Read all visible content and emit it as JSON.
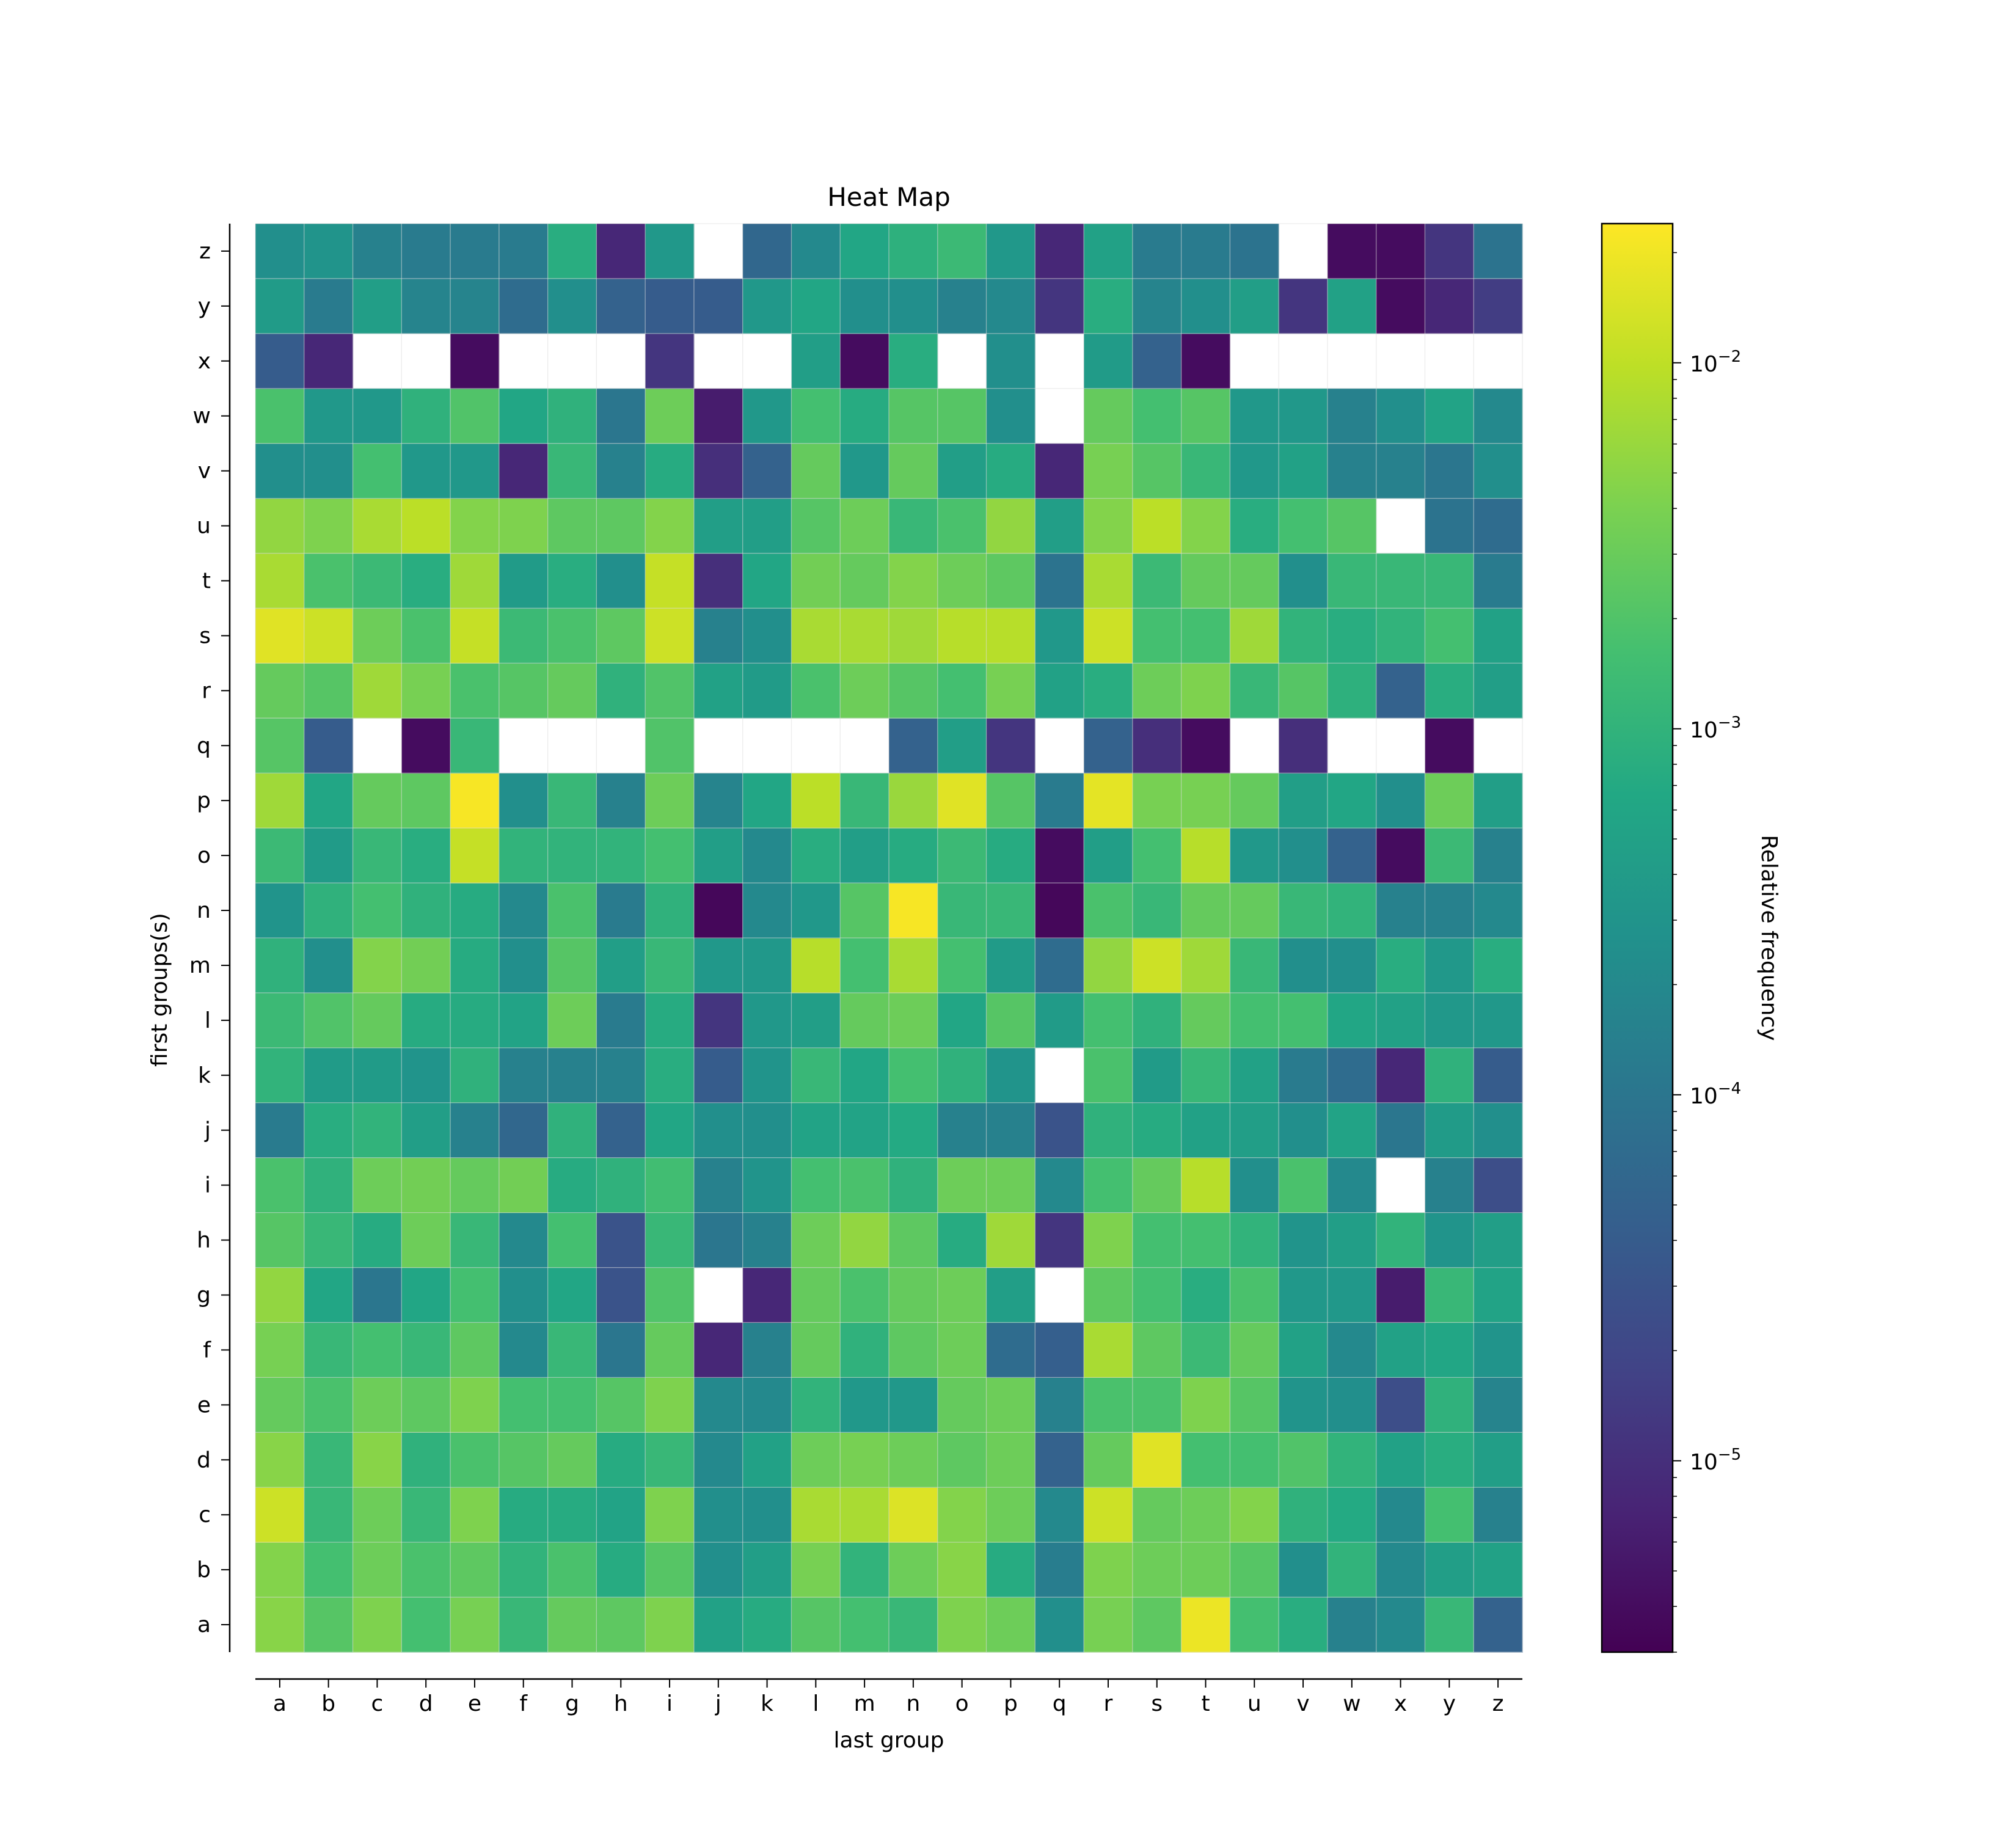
{
  "chart_data": {
    "type": "heatmap",
    "title": "Heat Map",
    "xlabel": "last group",
    "ylabel": "first groups(s)",
    "colorbar_label": "Relative frequency",
    "scale": "log",
    "colormap": "viridis",
    "vmin": 3e-06,
    "vmax": 0.024,
    "colorbar_ticks": [
      {
        "value": 0.01,
        "base": "10",
        "exp": "−2"
      },
      {
        "value": 0.001,
        "base": "10",
        "exp": "−3"
      },
      {
        "value": 0.0001,
        "base": "10",
        "exp": "−4"
      },
      {
        "value": 1e-05,
        "base": "10",
        "exp": "−5"
      }
    ],
    "grid": true,
    "x": [
      "a",
      "b",
      "c",
      "d",
      "e",
      "f",
      "g",
      "h",
      "i",
      "j",
      "k",
      "l",
      "m",
      "n",
      "o",
      "p",
      "q",
      "r",
      "s",
      "t",
      "u",
      "v",
      "w",
      "x",
      "y",
      "z"
    ],
    "y": [
      "a",
      "b",
      "c",
      "d",
      "e",
      "f",
      "g",
      "h",
      "i",
      "j",
      "k",
      "l",
      "m",
      "n",
      "o",
      "p",
      "q",
      "r",
      "s",
      "t",
      "u",
      "v",
      "w",
      "x",
      "y",
      "z"
    ],
    "z": [
      [
        0.0048,
        0.0022,
        0.0042,
        0.0016,
        0.0038,
        0.0012,
        0.0028,
        0.0025,
        0.0042,
        0.0005,
        0.00075,
        0.0022,
        0.0016,
        0.0012,
        0.0042,
        0.0032,
        0.00025,
        0.0038,
        0.0025,
        0.019,
        0.0016,
        0.0008,
        0.00015,
        0.0002,
        0.0012,
        5e-05
      ],
      [
        0.0045,
        0.0016,
        0.0032,
        0.0018,
        0.0025,
        0.001,
        0.0018,
        0.00075,
        0.0022,
        0.00025,
        0.00045,
        0.0038,
        0.001,
        0.0032,
        0.0048,
        0.00075,
        0.00013,
        0.0042,
        0.0032,
        0.0032,
        0.0022,
        0.00025,
        0.001,
        0.0002,
        0.00045,
        0.0005
      ],
      [
        0.012,
        0.0012,
        0.0032,
        0.0012,
        0.0042,
        0.00075,
        0.00075,
        0.00055,
        0.0042,
        0.00025,
        0.00025,
        0.0075,
        0.0075,
        0.015,
        0.0045,
        0.0032,
        0.0002,
        0.012,
        0.0028,
        0.0032,
        0.0045,
        0.00095,
        0.0007,
        0.0002,
        0.0016,
        0.00015
      ],
      [
        0.0048,
        0.0012,
        0.0048,
        0.00095,
        0.0018,
        0.0022,
        0.0028,
        0.00075,
        0.0012,
        0.0002,
        0.0005,
        0.0032,
        0.0038,
        0.0032,
        0.0025,
        0.0032,
        5e-05,
        0.0028,
        0.016,
        0.0016,
        0.0016,
        0.002,
        0.001,
        0.0005,
        0.0008,
        0.00045
      ],
      [
        0.0028,
        0.0018,
        0.0032,
        0.0025,
        0.0042,
        0.0016,
        0.0016,
        0.0022,
        0.0042,
        0.0002,
        0.0002,
        0.001,
        0.00035,
        0.00035,
        0.0028,
        0.0032,
        0.00015,
        0.0018,
        0.0018,
        0.0042,
        0.0022,
        0.0003,
        0.00025,
        2.5e-05,
        0.00095,
        0.00017
      ],
      [
        0.0038,
        0.0012,
        0.0016,
        0.0012,
        0.0025,
        0.0002,
        0.0012,
        0.0001,
        0.0028,
        8e-06,
        0.00015,
        0.0028,
        0.00095,
        0.0025,
        0.0032,
        7e-05,
        4.5e-05,
        0.0075,
        0.0025,
        0.0013,
        0.0028,
        0.0005,
        0.0002,
        0.0005,
        0.0006,
        0.0003
      ],
      [
        0.0055,
        0.0006,
        0.0001,
        0.0006,
        0.0016,
        0.00025,
        0.0006,
        3e-05,
        0.002,
        null,
        8e-06,
        0.0028,
        0.0018,
        0.0028,
        0.0032,
        0.00045,
        null,
        0.0025,
        0.0016,
        0.0008,
        0.0018,
        0.00035,
        0.00035,
        6e-06,
        0.0012,
        0.00055
      ],
      [
        0.0022,
        0.0012,
        0.00075,
        0.0032,
        0.0012,
        0.0002,
        0.0016,
        3e-05,
        0.0012,
        0.0001,
        0.00015,
        0.0032,
        0.0055,
        0.0025,
        0.00075,
        0.0065,
        1.2e-05,
        0.0042,
        0.0016,
        0.0016,
        0.001,
        0.0003,
        0.00045,
        0.001,
        0.0003,
        0.00045
      ],
      [
        0.0018,
        0.00095,
        0.0032,
        0.0035,
        0.0028,
        0.0035,
        0.00075,
        0.00095,
        0.0015,
        0.00015,
        0.0003,
        0.0016,
        0.0018,
        0.00095,
        0.0032,
        0.0032,
        0.0002,
        0.0016,
        0.0028,
        0.009,
        0.00025,
        0.0018,
        0.0002,
        null,
        0.00015,
        2.5e-05
      ],
      [
        0.00012,
        0.0008,
        0.001,
        0.00045,
        0.00015,
        6e-05,
        0.00095,
        5e-05,
        0.0006,
        0.00025,
        0.00025,
        0.00055,
        0.00055,
        0.0007,
        0.00015,
        0.00015,
        3e-05,
        0.00095,
        0.00075,
        0.0005,
        0.00045,
        0.00025,
        0.00055,
        0.0001,
        0.0004,
        0.00025
      ],
      [
        0.001,
        0.0004,
        0.0004,
        0.0003,
        0.00095,
        0.00015,
        0.00015,
        0.00015,
        0.0008,
        4e-05,
        0.0003,
        0.0012,
        0.0006,
        0.0016,
        0.00095,
        0.0003,
        null,
        0.0018,
        0.0004,
        0.0012,
        0.0005,
        0.00012,
        7e-05,
        8e-06,
        0.00095,
        4e-05
      ],
      [
        0.0013,
        0.002,
        0.0028,
        0.00075,
        0.00075,
        0.00055,
        0.0032,
        0.00012,
        0.00075,
        1.2e-05,
        0.00035,
        0.00045,
        0.0028,
        0.0032,
        0.0006,
        0.0022,
        0.0004,
        0.0016,
        0.00095,
        0.0028,
        0.0016,
        0.0016,
        0.0006,
        0.0005,
        0.00035,
        0.00035
      ],
      [
        0.00095,
        0.00025,
        0.0045,
        0.0035,
        0.00075,
        0.00025,
        0.0022,
        0.00045,
        0.0012,
        0.00035,
        0.00035,
        0.009,
        0.0016,
        0.0075,
        0.0016,
        0.0004,
        7e-05,
        0.0055,
        0.012,
        0.0065,
        0.0012,
        0.00025,
        0.00025,
        0.0008,
        0.00035,
        0.0008
      ],
      [
        0.0003,
        0.00095,
        0.0016,
        0.00095,
        0.00075,
        0.0002,
        0.0018,
        0.00012,
        0.00095,
        3.5e-06,
        0.0002,
        0.00035,
        0.0022,
        0.022,
        0.0012,
        0.0012,
        3.5e-06,
        0.0018,
        0.0012,
        0.0028,
        0.0028,
        0.0012,
        0.001,
        0.00015,
        0.00015,
        0.0002
      ],
      [
        0.0013,
        0.0004,
        0.0012,
        0.0008,
        0.011,
        0.001,
        0.001,
        0.001,
        0.0016,
        0.00045,
        0.0002,
        0.0008,
        0.00045,
        0.00075,
        0.0013,
        0.00075,
        4e-06,
        0.00045,
        0.0016,
        0.009,
        0.00035,
        0.00025,
        5e-05,
        4e-06,
        0.0013,
        0.00015
      ],
      [
        0.0065,
        0.0006,
        0.0028,
        0.0025,
        0.022,
        0.00025,
        0.0012,
        0.00015,
        0.0032,
        0.00017,
        0.0006,
        0.0095,
        0.0012,
        0.006,
        0.016,
        0.0022,
        0.00012,
        0.017,
        0.0038,
        0.0038,
        0.0028,
        0.00045,
        0.0006,
        0.00025,
        0.0032,
        0.00045
      ],
      [
        0.0022,
        4e-05,
        null,
        4e-06,
        0.0012,
        null,
        null,
        null,
        0.002,
        null,
        null,
        null,
        null,
        5e-05,
        0.00045,
        1.2e-05,
        null,
        5e-05,
        1e-05,
        4e-06,
        null,
        1e-05,
        null,
        null,
        4e-06,
        null
      ],
      [
        0.0028,
        0.0022,
        0.0065,
        0.0038,
        0.0018,
        0.0022,
        0.0028,
        0.00095,
        0.002,
        0.0005,
        0.0004,
        0.0018,
        0.0032,
        0.0022,
        0.0016,
        0.0038,
        0.0005,
        0.0008,
        0.0032,
        0.0042,
        0.0012,
        0.0022,
        0.0009,
        5e-05,
        0.0008,
        0.00045
      ],
      [
        0.016,
        0.012,
        0.0032,
        0.0018,
        0.011,
        0.0013,
        0.0018,
        0.0025,
        0.012,
        0.00015,
        0.00025,
        0.0075,
        0.0075,
        0.0065,
        0.009,
        0.009,
        0.00035,
        0.012,
        0.0016,
        0.0016,
        0.0065,
        0.001,
        0.0008,
        0.001,
        0.0016,
        0.0005
      ],
      [
        0.0075,
        0.0018,
        0.0013,
        0.0008,
        0.0065,
        0.0004,
        0.0008,
        0.00025,
        0.011,
        1e-05,
        0.0006,
        0.0035,
        0.0028,
        0.0045,
        0.0032,
        0.0025,
        9e-05,
        0.0075,
        0.0013,
        0.0028,
        0.0028,
        0.00025,
        0.0012,
        0.0012,
        0.0012,
        0.00012
      ],
      [
        0.0055,
        0.0042,
        0.0075,
        0.0095,
        0.0045,
        0.0042,
        0.0025,
        0.0025,
        0.0045,
        0.00045,
        0.00045,
        0.0022,
        0.0032,
        0.0012,
        0.0018,
        0.0055,
        0.00045,
        0.0045,
        0.0095,
        0.0045,
        0.0008,
        0.0016,
        0.0022,
        null,
        9e-05,
        7e-05
      ],
      [
        0.00025,
        0.00025,
        0.0016,
        0.00035,
        0.00035,
        8e-06,
        0.0012,
        0.00015,
        0.00075,
        1e-05,
        5e-05,
        0.0028,
        0.00035,
        0.0028,
        0.00045,
        0.00075,
        8e-06,
        0.0038,
        0.0022,
        0.0012,
        0.00035,
        0.0005,
        0.00015,
        0.00015,
        0.0001,
        0.00025
      ],
      [
        0.0018,
        0.00035,
        0.00035,
        0.00095,
        0.002,
        0.0006,
        0.00095,
        0.0001,
        0.0032,
        6e-06,
        0.00035,
        0.0016,
        0.00075,
        0.0022,
        0.0022,
        0.00025,
        null,
        0.0028,
        0.0016,
        0.0022,
        0.00035,
        0.00035,
        0.00015,
        0.00025,
        0.00055,
        0.0002
      ],
      [
        4e-05,
        8e-06,
        null,
        null,
        4e-06,
        null,
        null,
        null,
        1.2e-05,
        null,
        null,
        0.00045,
        4e-06,
        0.0008,
        null,
        0.00025,
        null,
        0.0004,
        5e-05,
        4e-06,
        null,
        null,
        null,
        null,
        null,
        null
      ],
      [
        0.0004,
        0.00012,
        0.00045,
        0.00017,
        0.00017,
        7e-05,
        0.00025,
        5e-05,
        4e-05,
        4e-05,
        0.00035,
        0.0006,
        0.00025,
        0.00025,
        0.00015,
        0.0002,
        1.2e-05,
        0.0008,
        0.00017,
        0.00025,
        0.00045,
        1.2e-05,
        0.0005,
        4e-06,
        8e-06,
        1.5e-05
      ],
      [
        0.00025,
        0.0003,
        0.00015,
        0.00012,
        0.00012,
        0.00012,
        0.0008,
        8e-06,
        0.00035,
        null,
        6e-05,
        0.0002,
        0.0006,
        0.0009,
        0.0013,
        0.00035,
        8e-06,
        0.0005,
        0.00012,
        0.00012,
        9e-05,
        null,
        4e-06,
        4e-06,
        1.2e-05,
        9e-05
      ]
    ]
  }
}
